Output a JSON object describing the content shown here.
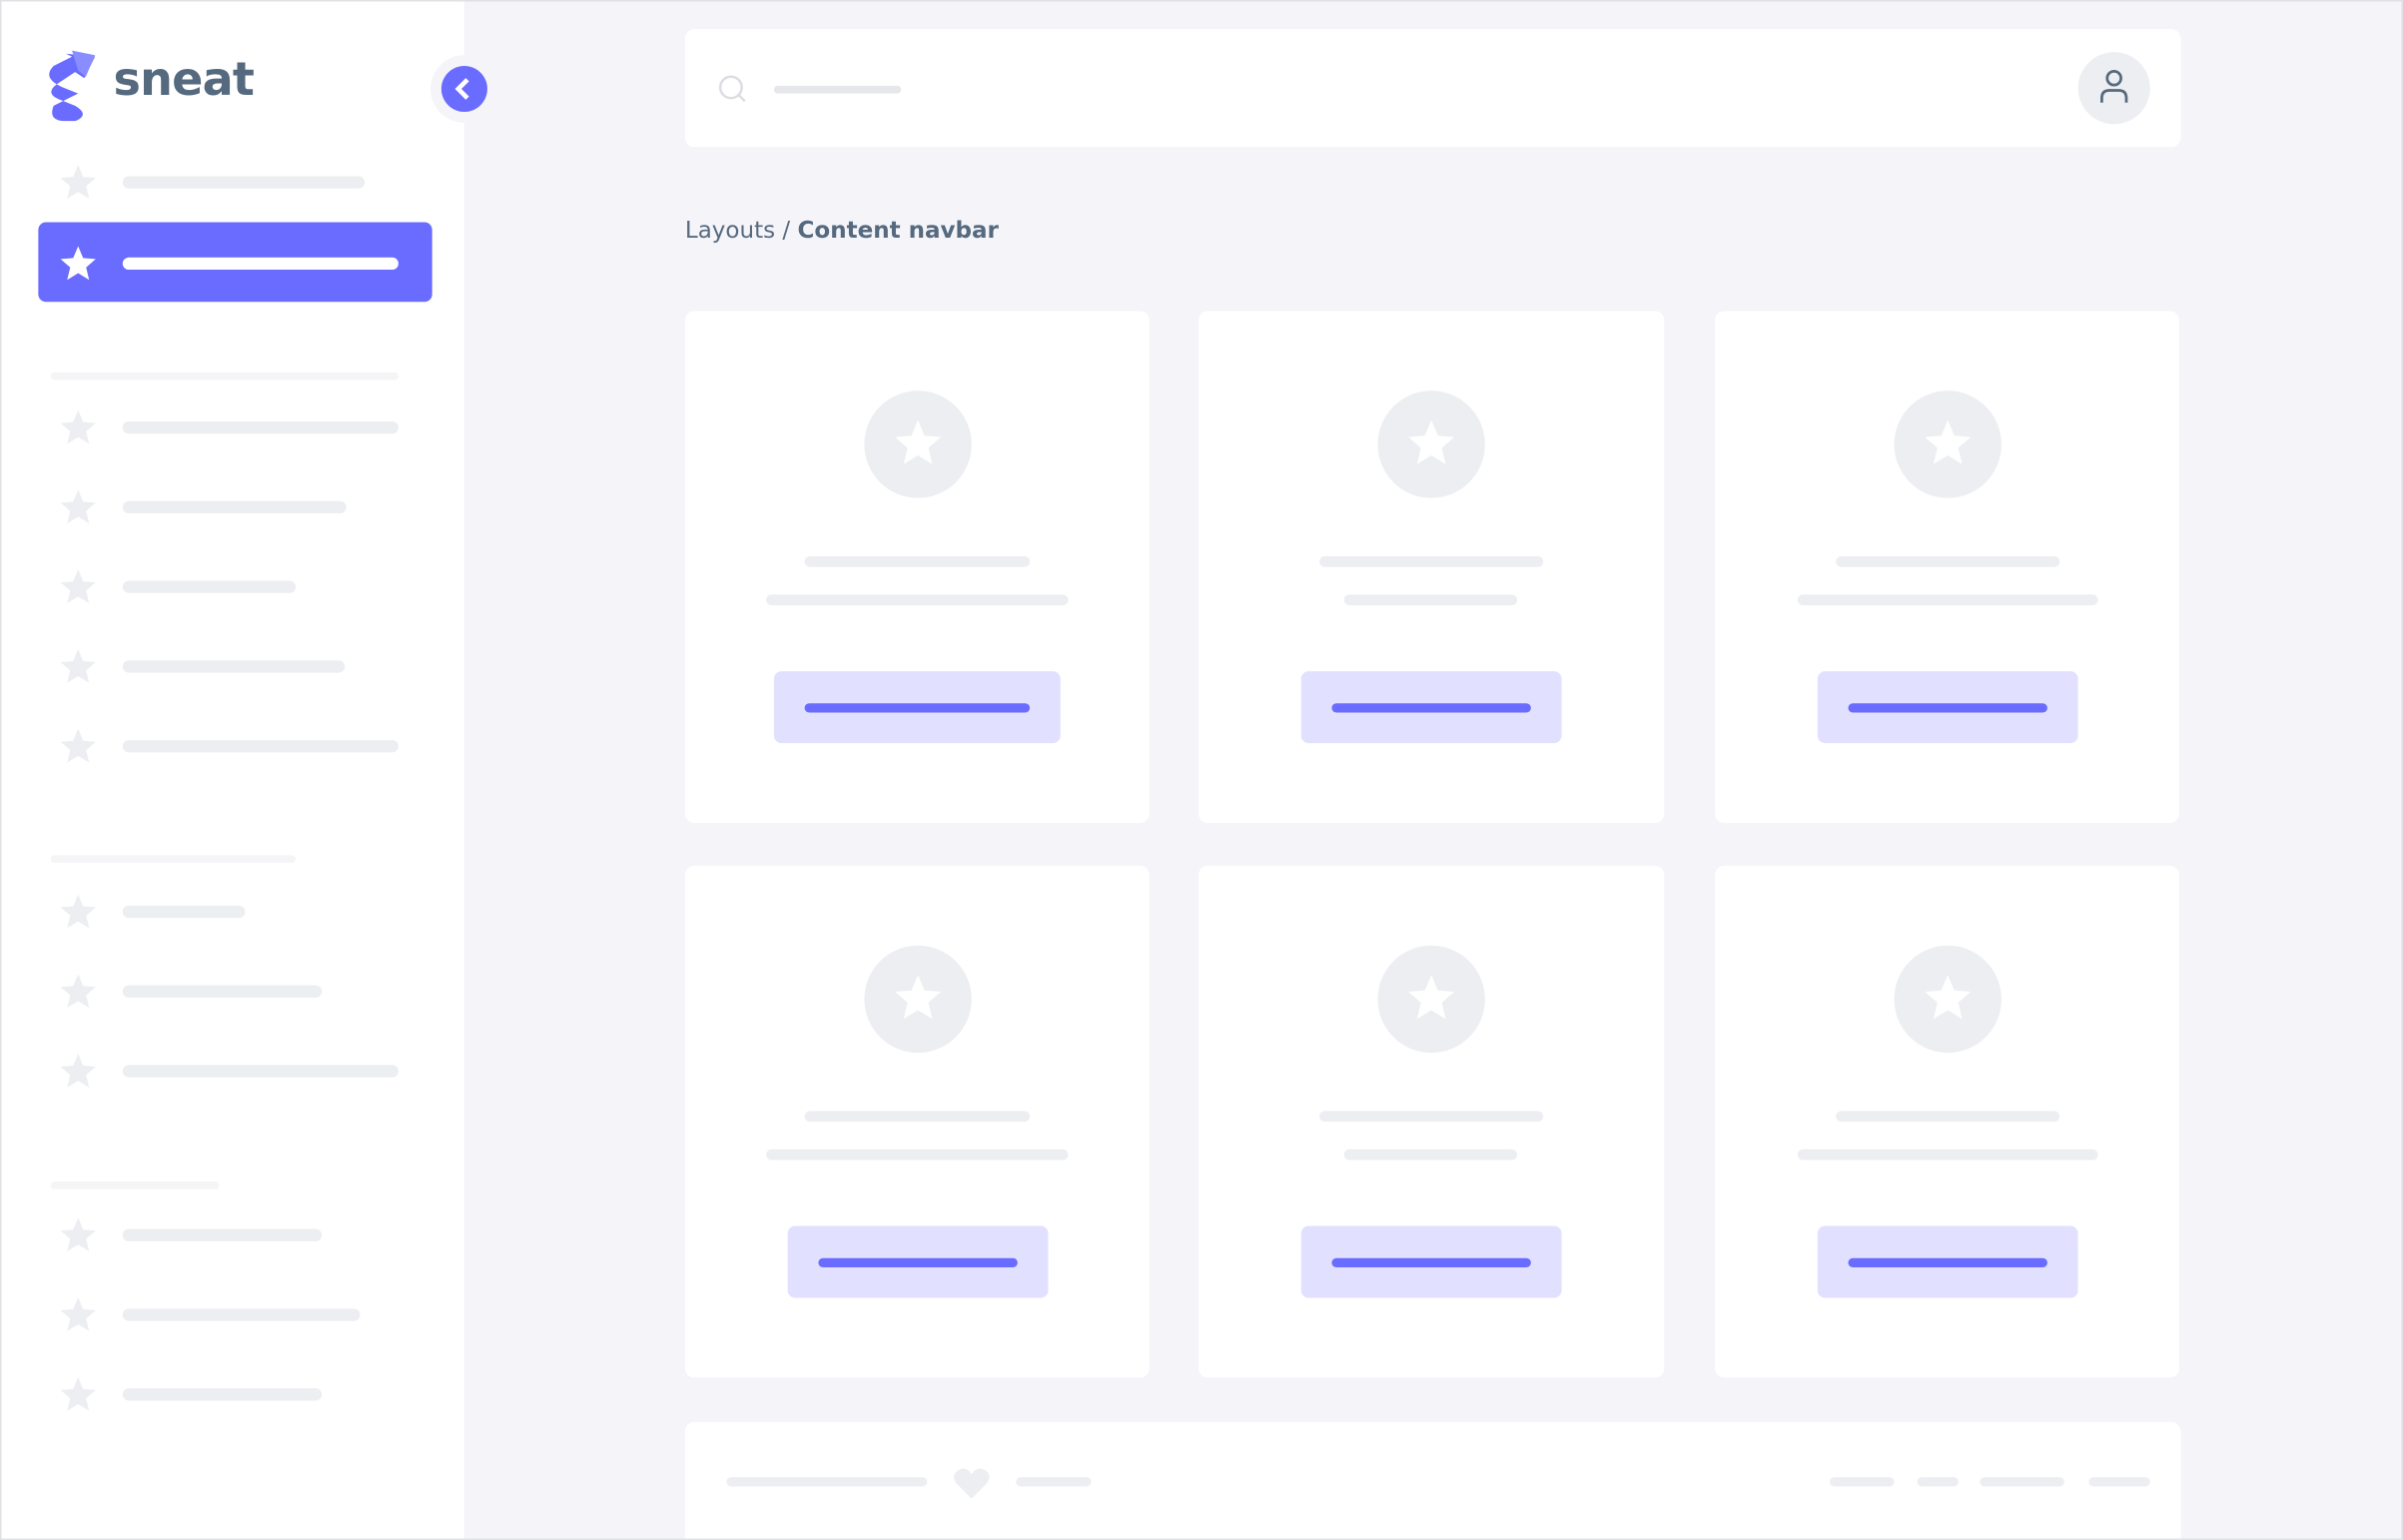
{
  "app": {
    "logo_text": "sneat"
  },
  "breadcrumb": {
    "parent": "Layouts",
    "separator": " / ",
    "current": "Content navbar"
  },
  "colors": {
    "primary": "#696cff",
    "primary_light": "#e1e1ff",
    "text": "#566a7f",
    "skeleton": "#eceef1",
    "background": "#f4f4f9"
  },
  "icons": {
    "menu_item": "star-icon",
    "collapse": "chevron-left-icon",
    "search": "search-icon",
    "user": "user-icon",
    "footer": "heart-icon"
  }
}
